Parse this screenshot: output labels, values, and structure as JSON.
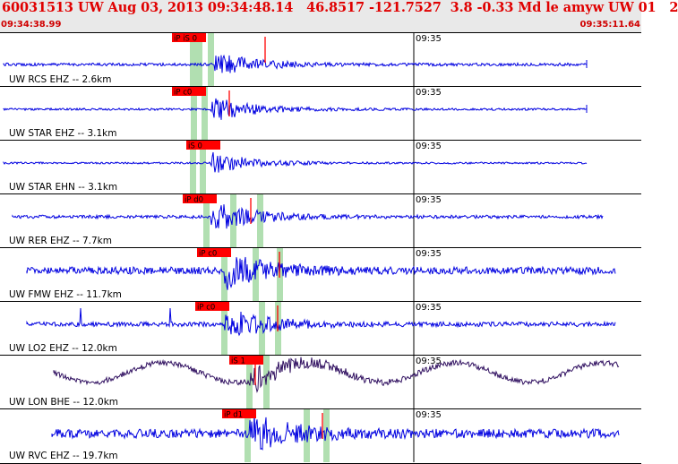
{
  "header": {
    "title": "60031513 UW Aug 03, 2013 09:34:48.14   46.8517 -121.7527  3.8 -0.33 Md le amyw UW 01   2",
    "start_time": "09:34:38.99",
    "end_time": "09:35:11.64"
  },
  "colors": {
    "trace": "#0000e0",
    "lp_trace": "#301060",
    "pick": "#ff0000",
    "window": "#a8dca8",
    "panel_border": "#000000",
    "header_bg": "#e9e9e9",
    "header_text": "#e00000"
  },
  "channels": [
    {
      "label": "UW RCS EHZ -- 2.6km",
      "tick_label": "09:35",
      "pick_label": "iP iS 0",
      "amp": 13,
      "noise": 1.6,
      "arrival": 0.335,
      "end": 0.915,
      "color_key": "trace"
    },
    {
      "label": "UW STAR EHZ -- 3.1km",
      "tick_label": "09:35",
      "pick_label": "iP c0",
      "amp": 14,
      "noise": 1.2,
      "arrival": 0.33,
      "end": 0.915,
      "color_key": "trace"
    },
    {
      "label": "UW STAR EHN -- 3.1km",
      "tick_label": "09:35",
      "pick_label": "iS 0",
      "amp": 12,
      "noise": 1.0,
      "arrival": 0.33,
      "end": 0.915,
      "color_key": "trace"
    },
    {
      "label": "UW RER EHZ -- 7.7km",
      "tick_label": "09:35",
      "pick_label": "iP d0",
      "amp": 18,
      "noise": 1.8,
      "arrival": 0.33,
      "end": 0.94,
      "color_key": "trace"
    },
    {
      "label": "UW FMW EHZ -- 11.7km",
      "tick_label": "09:35",
      "pick_label": "iP c0",
      "amp": 20,
      "noise": 4.0,
      "arrival": 0.35,
      "end": 0.96,
      "color_key": "trace"
    },
    {
      "label": "UW LO2 EHZ -- 12.0km",
      "tick_label": "09:35",
      "pick_label": "iP c0",
      "amp": 18,
      "noise": 2.5,
      "arrival": 0.35,
      "end": 0.96,
      "color_key": "trace"
    },
    {
      "label": "UW LON BHE -- 12.0km",
      "tick_label": "09:35",
      "pick_label": "iS 1",
      "amp": 15,
      "noise": 3.0,
      "arrival": 0.39,
      "end": 0.965,
      "color_key": "lp_trace"
    },
    {
      "label": "UW RVC EHZ -- 19.7km",
      "tick_label": "09:35",
      "pick_label": "iP d1",
      "amp": 20,
      "noise": 5.0,
      "arrival": 0.39,
      "end": 0.965,
      "color_key": "trace"
    }
  ]
}
